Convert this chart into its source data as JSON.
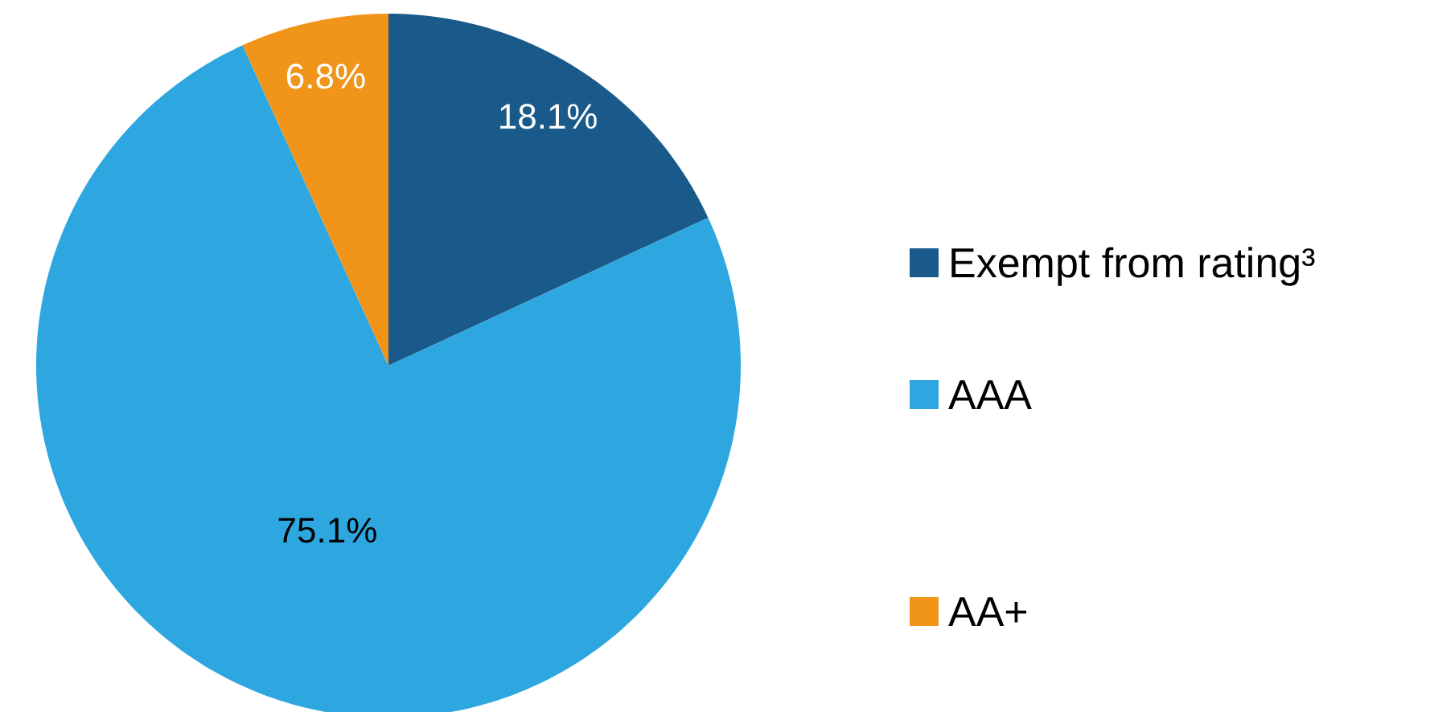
{
  "chart_data": {
    "type": "pie",
    "categories": [
      "Exempt from rating³",
      "AAA",
      "AA+"
    ],
    "values": [
      18.1,
      75.1,
      6.8
    ],
    "colors": [
      "#1a5a8a",
      "#2ea7e0",
      "#f0941a"
    ],
    "value_labels": [
      "18.1%",
      "75.1%",
      "6.8%"
    ],
    "legend": "right"
  }
}
